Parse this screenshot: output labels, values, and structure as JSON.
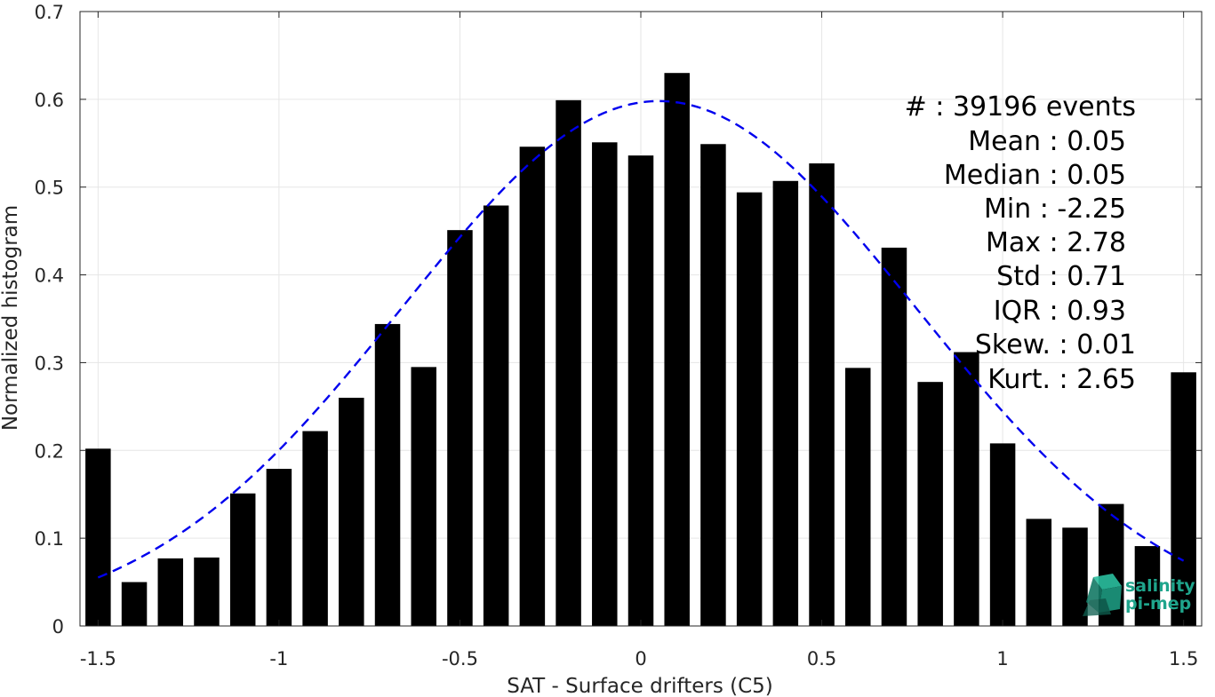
{
  "chart_data": {
    "type": "bar",
    "xlabel": "SAT - Surface drifters (C5)",
    "ylabel": "Normalized histogram",
    "xlim": [
      -1.55,
      1.55
    ],
    "ylim": [
      0,
      0.7
    ],
    "xticks": [
      -1.5,
      -1,
      -0.5,
      0,
      0.5,
      1,
      1.5
    ],
    "xtick_labels": [
      "-1.5",
      "-1",
      "-0.5",
      "0",
      "0.5",
      "1",
      "1.5"
    ],
    "yticks": [
      0,
      0.1,
      0.2,
      0.3,
      0.4,
      0.5,
      0.6,
      0.7
    ],
    "ytick_labels": [
      "0",
      "0.1",
      "0.2",
      "0.3",
      "0.4",
      "0.5",
      "0.6",
      "0.7"
    ],
    "grid": true,
    "bar_color": "#000000",
    "bin_width": 0.1,
    "bar_width_fraction": 0.7,
    "x": [
      -1.5,
      -1.4,
      -1.3,
      -1.2,
      -1.1,
      -1.0,
      -0.9,
      -0.8,
      -0.7,
      -0.6,
      -0.5,
      -0.4,
      -0.3,
      -0.2,
      -0.1,
      0.0,
      0.1,
      0.2,
      0.3,
      0.4,
      0.5,
      0.6,
      0.7,
      0.8,
      0.9,
      1.0,
      1.1,
      1.2,
      1.3,
      1.4,
      1.5
    ],
    "values": [
      0.202,
      0.05,
      0.077,
      0.078,
      0.151,
      0.179,
      0.222,
      0.26,
      0.344,
      0.295,
      0.451,
      0.479,
      0.546,
      0.599,
      0.551,
      0.536,
      0.63,
      0.549,
      0.494,
      0.507,
      0.527,
      0.294,
      0.431,
      0.278,
      0.312,
      0.208,
      0.122,
      0.112,
      0.139,
      0.091,
      0.289
    ],
    "fit_curve": {
      "type": "gaussian",
      "color": "#0000ee",
      "style": "dashed",
      "mean": 0.05,
      "std": 0.71,
      "peak": 0.598,
      "x_range": [
        -1.5,
        1.5
      ]
    },
    "annotations": [
      "#  : 39196 events",
      "Mean : 0.05",
      "Median : 0.05",
      "Min : -2.25",
      "Max : 2.78",
      "Std : 0.71",
      "IQR : 0.93",
      "Skew. : 0.01",
      "Kurt. : 2.65"
    ]
  },
  "logo": {
    "line1": "salinity",
    "line2": "pi-mep",
    "color": "#1fa58c"
  }
}
